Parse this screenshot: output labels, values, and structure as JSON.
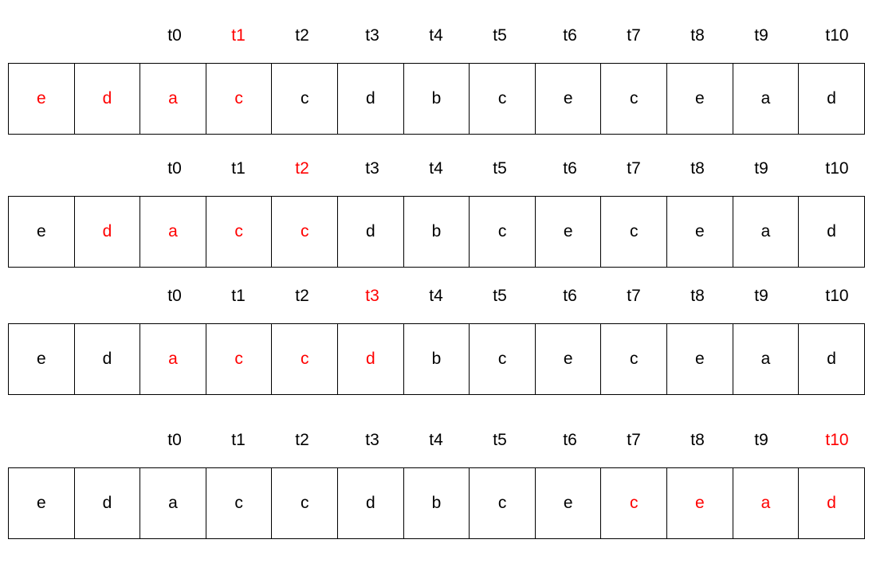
{
  "colors": {
    "highlight": "#ff0000",
    "normal": "#000000",
    "border": "#000000"
  },
  "rows": [
    {
      "time_labels": [
        "t0",
        "t1",
        "t2",
        "t3",
        "t4",
        "t5",
        "t6",
        "t7",
        "t8",
        "t9",
        "t10"
      ],
      "highlighted_label": 1,
      "cells": [
        "e",
        "d",
        "a",
        "c",
        "c",
        "d",
        "b",
        "c",
        "e",
        "c",
        "e",
        "a",
        "d"
      ],
      "highlighted_cells": [
        0,
        1,
        2,
        3
      ]
    },
    {
      "time_labels": [
        "t0",
        "t1",
        "t2",
        "t3",
        "t4",
        "t5",
        "t6",
        "t7",
        "t8",
        "t9",
        "t10"
      ],
      "highlighted_label": 2,
      "cells": [
        "e",
        "d",
        "a",
        "c",
        "c",
        "d",
        "b",
        "c",
        "e",
        "c",
        "e",
        "a",
        "d"
      ],
      "highlighted_cells": [
        1,
        2,
        3,
        4
      ]
    },
    {
      "time_labels": [
        "t0",
        "t1",
        "t2",
        "t3",
        "t4",
        "t5",
        "t6",
        "t7",
        "t8",
        "t9",
        "t10"
      ],
      "highlighted_label": 3,
      "cells": [
        "e",
        "d",
        "a",
        "c",
        "c",
        "d",
        "b",
        "c",
        "e",
        "c",
        "e",
        "a",
        "d"
      ],
      "highlighted_cells": [
        2,
        3,
        4,
        5
      ]
    },
    {
      "time_labels": [
        "t0",
        "t1",
        "t2",
        "t3",
        "t4",
        "t5",
        "t6",
        "t7",
        "t8",
        "t9",
        "t10"
      ],
      "highlighted_label": 10,
      "cells": [
        "e",
        "d",
        "a",
        "c",
        "c",
        "d",
        "b",
        "c",
        "e",
        "c",
        "e",
        "a",
        "d"
      ],
      "highlighted_cells": [
        9,
        10,
        11,
        12
      ]
    }
  ]
}
